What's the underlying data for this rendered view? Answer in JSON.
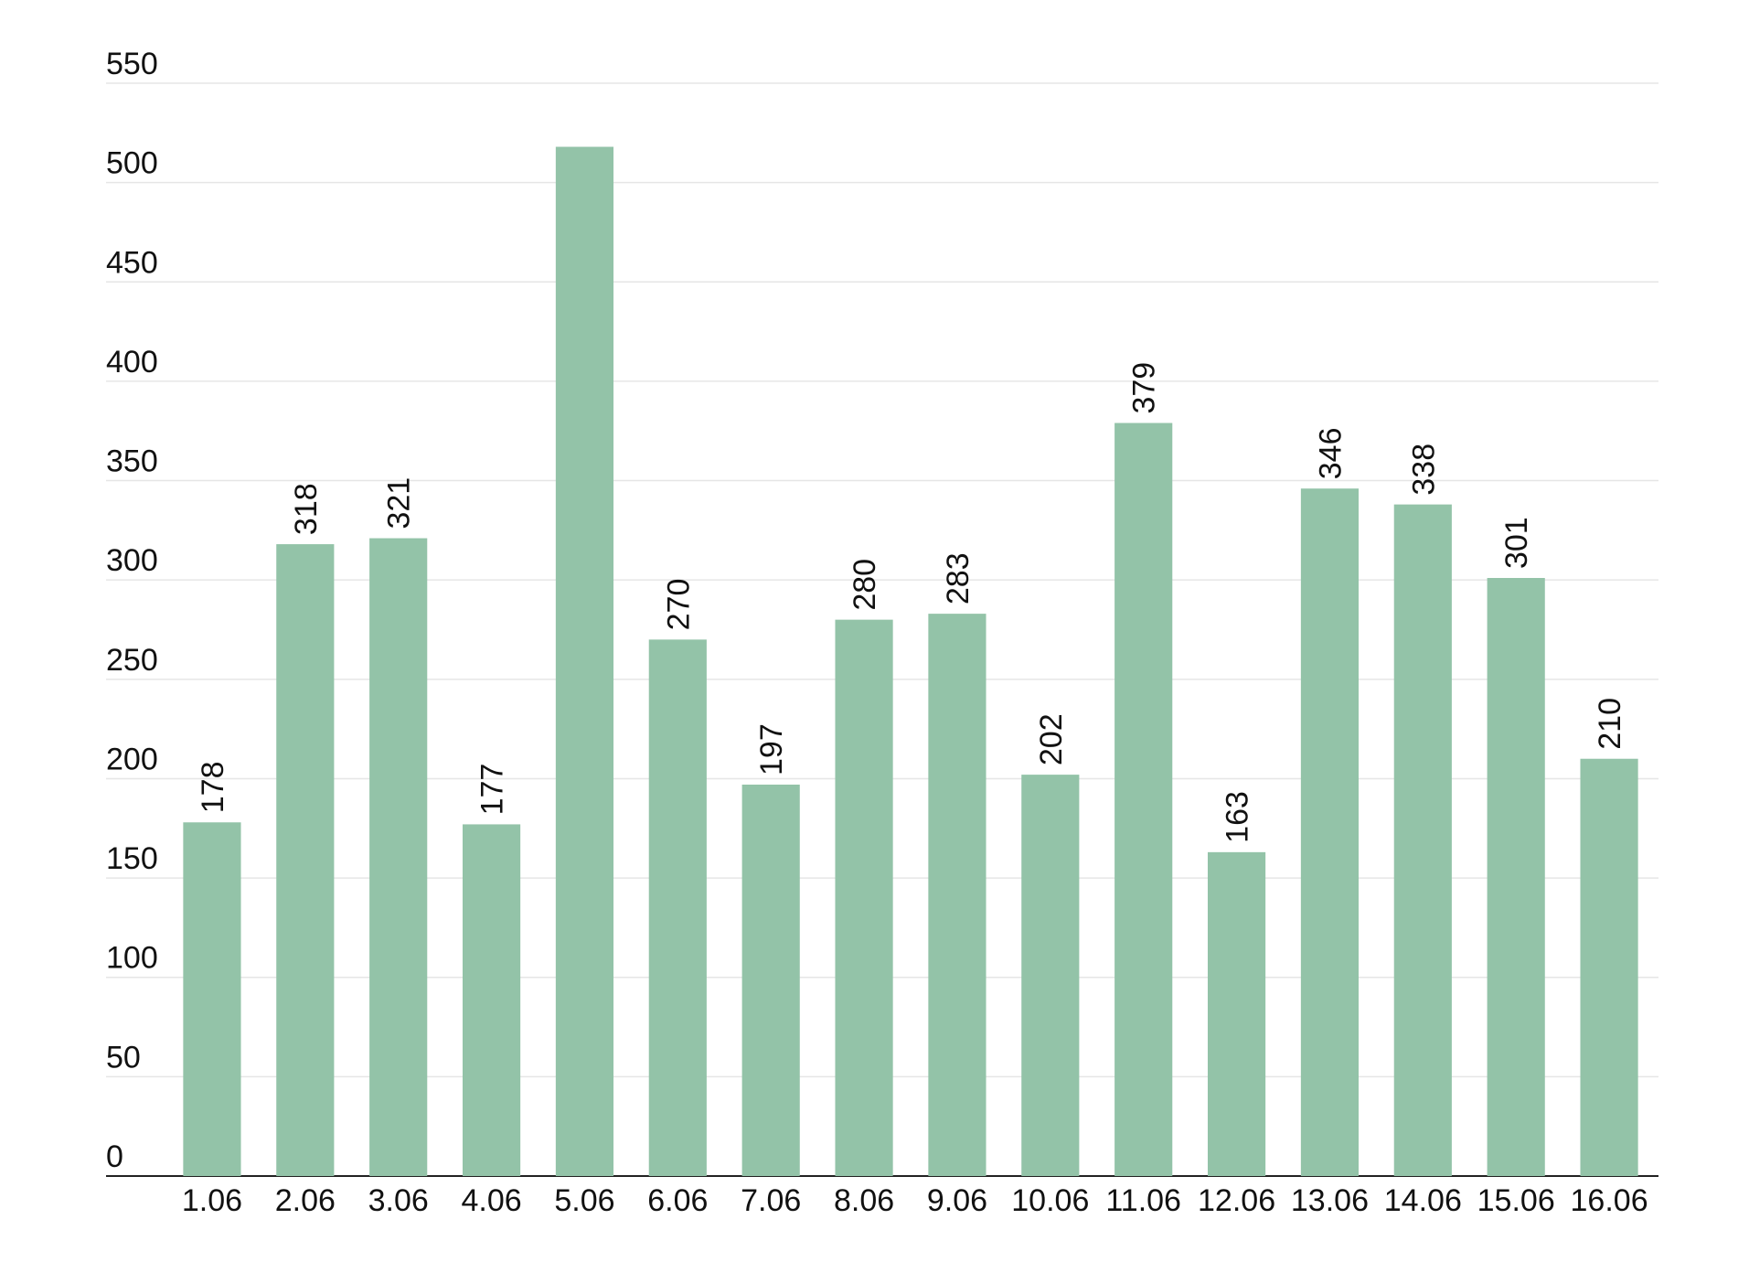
{
  "chart_data": {
    "type": "bar",
    "categories": [
      "1.06",
      "2.06",
      "3.06",
      "4.06",
      "5.06",
      "6.06",
      "7.06",
      "8.06",
      "9.06",
      "10.06",
      "11.06",
      "12.06",
      "13.06",
      "14.06",
      "15.06",
      "16.06"
    ],
    "values": [
      178,
      318,
      321,
      177,
      518,
      270,
      197,
      280,
      283,
      202,
      379,
      163,
      346,
      338,
      301,
      210
    ],
    "value_labels": [
      178,
      318,
      321,
      177,
      null,
      270,
      197,
      280,
      283,
      202,
      379,
      163,
      346,
      338,
      301,
      210
    ],
    "color": "#93c3a8",
    "ylim": [
      0,
      550
    ],
    "yticks": [
      0,
      50,
      100,
      150,
      200,
      250,
      300,
      350,
      400,
      450,
      500,
      550
    ],
    "grid": true
  }
}
